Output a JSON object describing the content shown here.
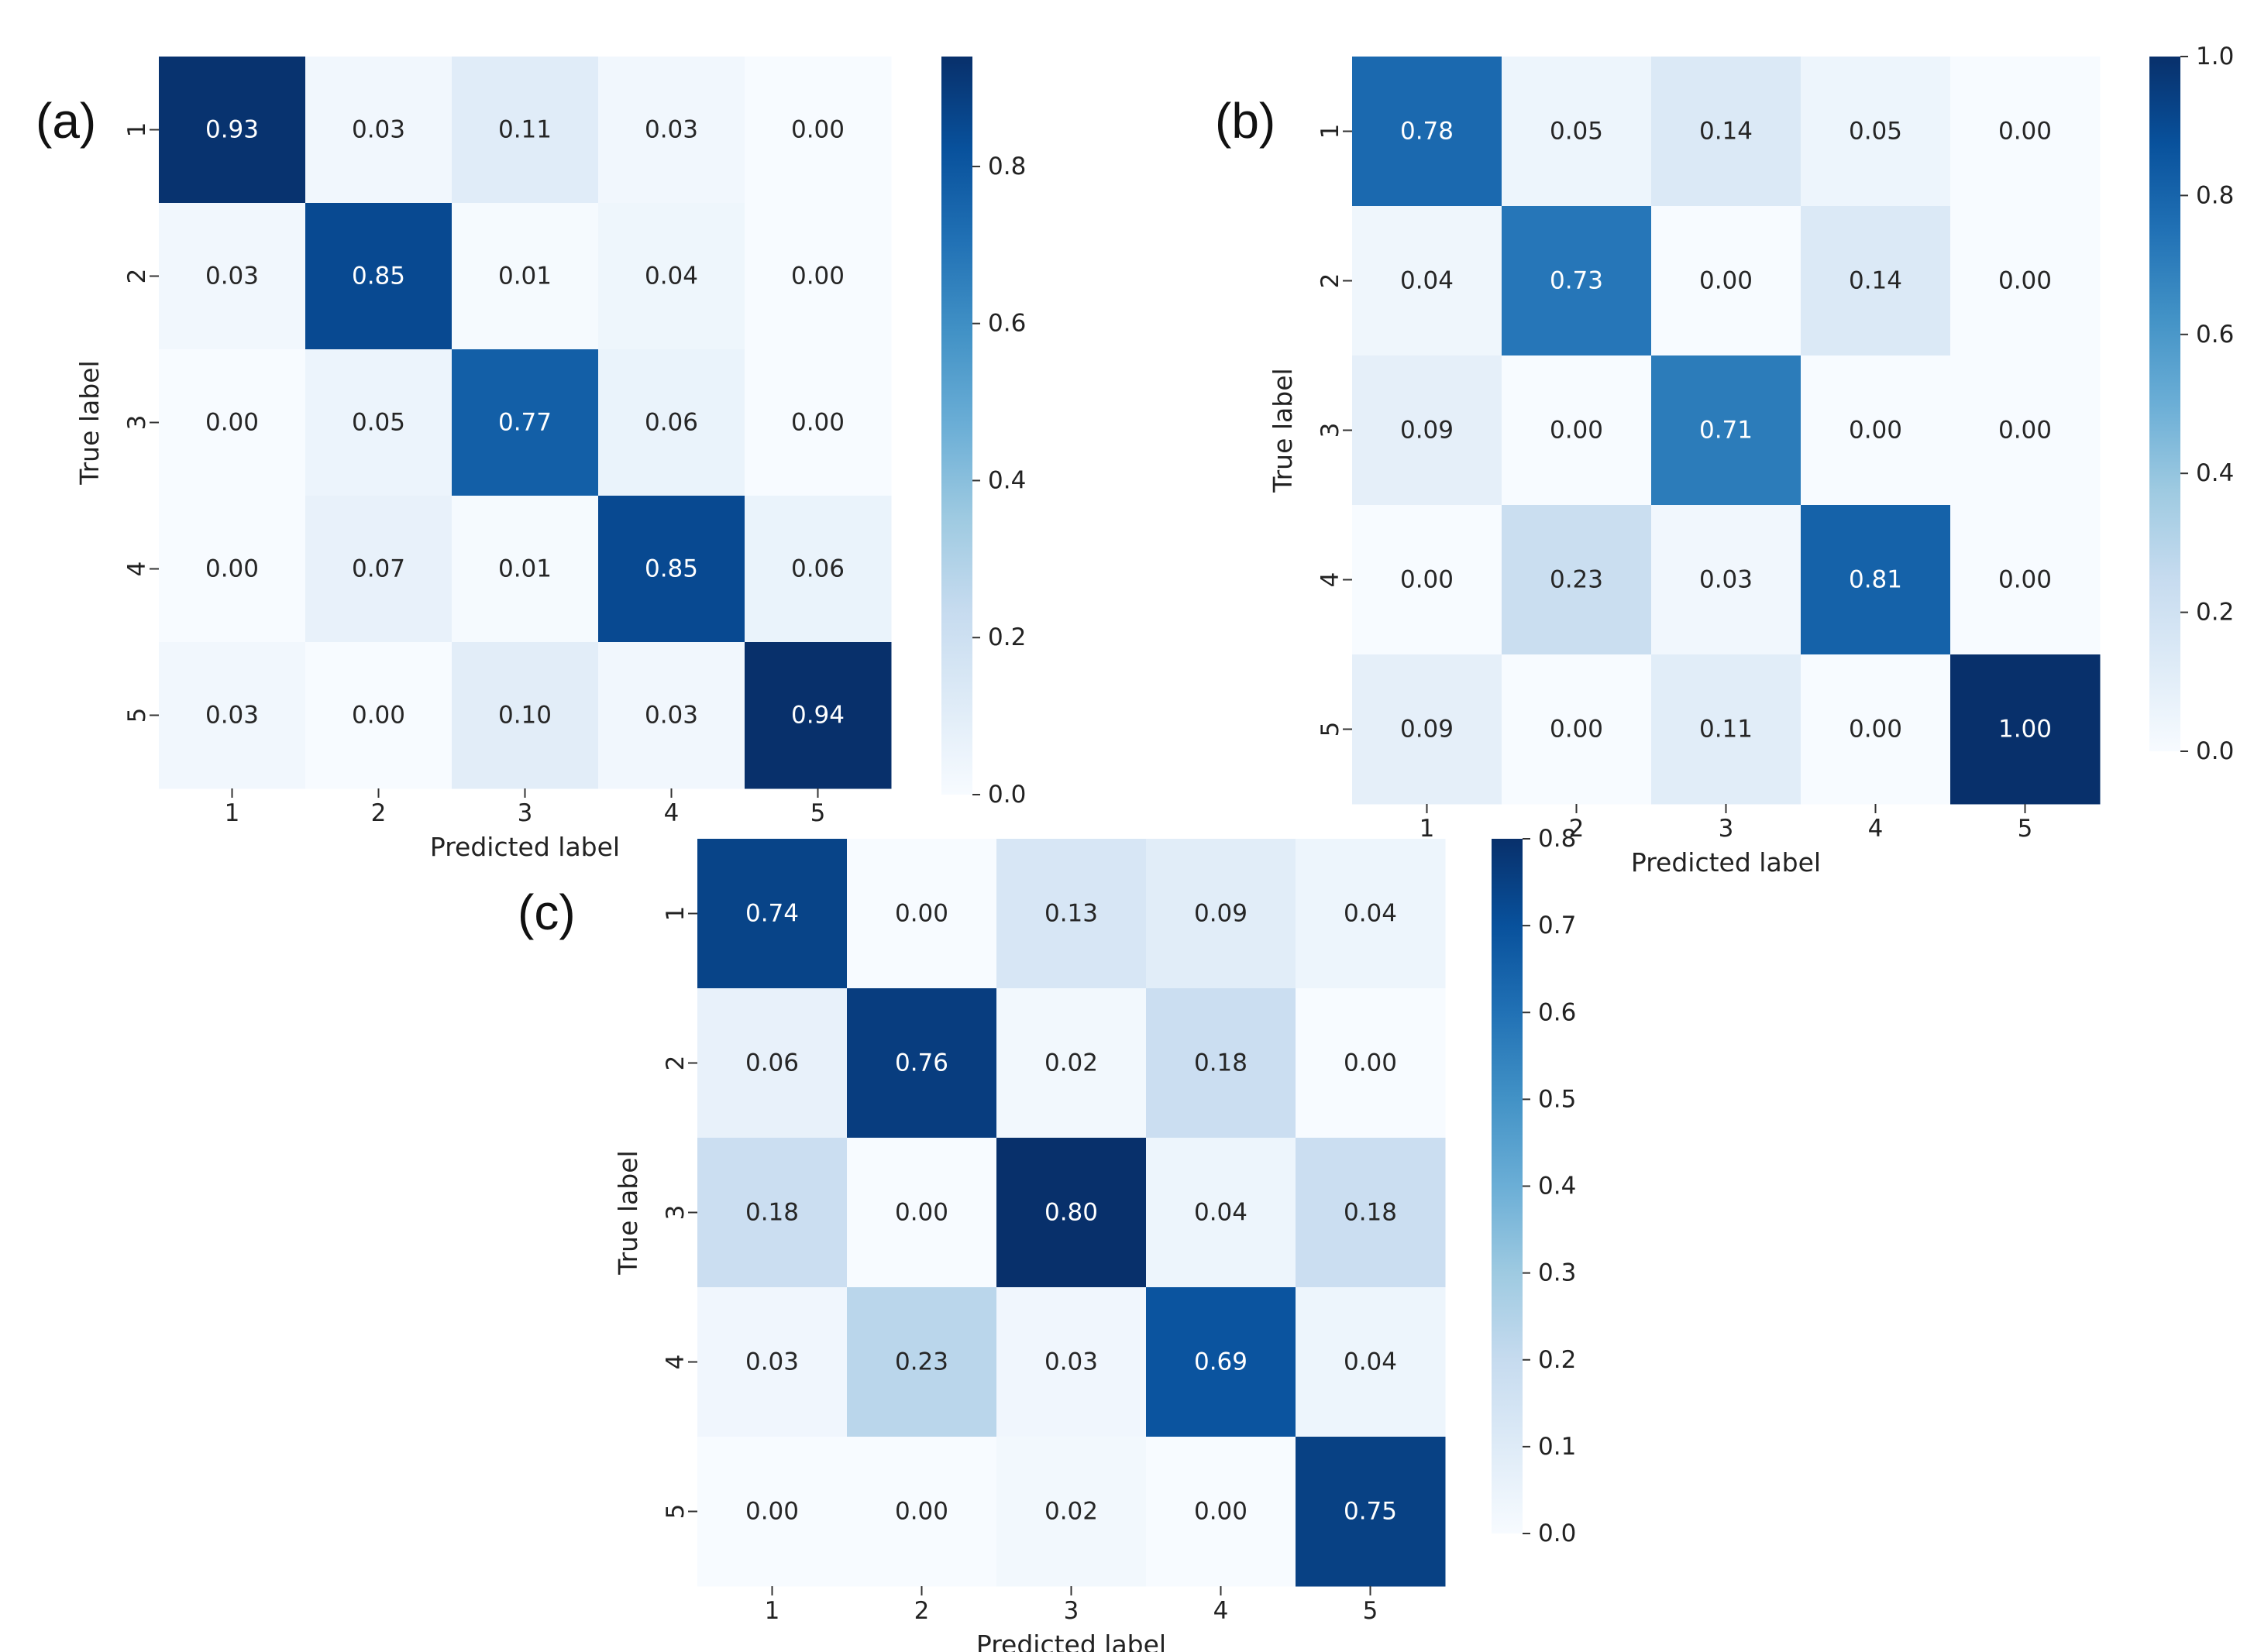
{
  "chart_data": [
    {
      "type": "heatmap",
      "panel_label": "(a)",
      "xlabel": "Predicted label",
      "ylabel": "True label",
      "x_categories": [
        "1",
        "2",
        "3",
        "4",
        "5"
      ],
      "y_categories": [
        "1",
        "2",
        "3",
        "4",
        "5"
      ],
      "matrix": [
        [
          "0.93",
          "0.03",
          "0.11",
          "0.03",
          "0.00"
        ],
        [
          "0.03",
          "0.85",
          "0.01",
          "0.04",
          "0.00"
        ],
        [
          "0.00",
          "0.05",
          "0.77",
          "0.06",
          "0.00"
        ],
        [
          "0.00",
          "0.07",
          "0.01",
          "0.85",
          "0.06"
        ],
        [
          "0.03",
          "0.00",
          "0.10",
          "0.03",
          "0.94"
        ]
      ],
      "colorbar": {
        "min": 0,
        "max": 0.94,
        "ticks": [
          "0.0",
          "0.2",
          "0.4",
          "0.6",
          "0.8"
        ]
      },
      "colormap": "Blues"
    },
    {
      "type": "heatmap",
      "panel_label": "(b)",
      "xlabel": "Predicted label",
      "ylabel": "True label",
      "x_categories": [
        "1",
        "2",
        "3",
        "4",
        "5"
      ],
      "y_categories": [
        "1",
        "2",
        "3",
        "4",
        "5"
      ],
      "matrix": [
        [
          "0.78",
          "0.05",
          "0.14",
          "0.05",
          "0.00"
        ],
        [
          "0.04",
          "0.73",
          "0.00",
          "0.14",
          "0.00"
        ],
        [
          "0.09",
          "0.00",
          "0.71",
          "0.00",
          "0.00"
        ],
        [
          "0.00",
          "0.23",
          "0.03",
          "0.81",
          "0.00"
        ],
        [
          "0.09",
          "0.00",
          "0.11",
          "0.00",
          "1.00"
        ]
      ],
      "colorbar": {
        "min": 0,
        "max": 1.0,
        "ticks": [
          "0.0",
          "0.2",
          "0.4",
          "0.6",
          "0.8",
          "1.0"
        ]
      },
      "colormap": "Blues"
    },
    {
      "type": "heatmap",
      "panel_label": "(c)",
      "xlabel": "Predicted label",
      "ylabel": "True label",
      "x_categories": [
        "1",
        "2",
        "3",
        "4",
        "5"
      ],
      "y_categories": [
        "1",
        "2",
        "3",
        "4",
        "5"
      ],
      "matrix": [
        [
          "0.74",
          "0.00",
          "0.13",
          "0.09",
          "0.04"
        ],
        [
          "0.06",
          "0.76",
          "0.02",
          "0.18",
          "0.00"
        ],
        [
          "0.18",
          "0.00",
          "0.80",
          "0.04",
          "0.18"
        ],
        [
          "0.03",
          "0.23",
          "0.03",
          "0.69",
          "0.04"
        ],
        [
          "0.00",
          "0.00",
          "0.02",
          "0.00",
          "0.75"
        ]
      ],
      "colorbar": {
        "min": 0,
        "max": 0.8,
        "ticks": [
          "0.0",
          "0.1",
          "0.2",
          "0.3",
          "0.4",
          "0.5",
          "0.6",
          "0.7",
          "0.8"
        ]
      },
      "colormap": "Blues"
    }
  ]
}
